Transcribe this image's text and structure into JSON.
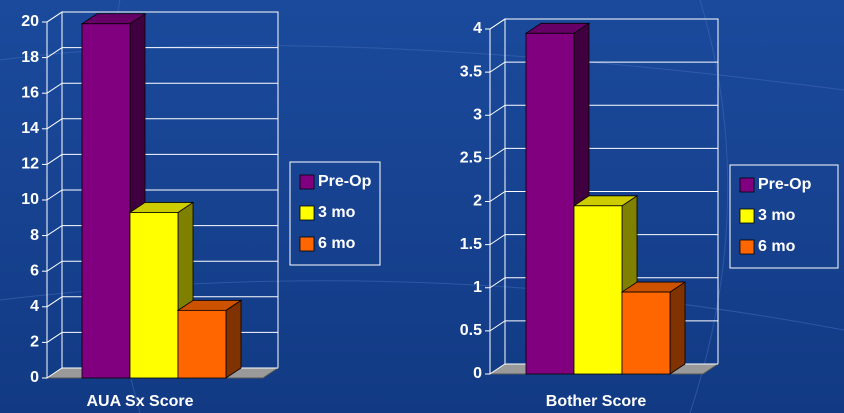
{
  "chart_data": [
    {
      "type": "bar",
      "xlabel": "AUA Sx Score",
      "series": [
        {
          "name": "Pre-Op",
          "color": "#800080",
          "values": [
            19.9
          ]
        },
        {
          "name": "3 mo",
          "color": "#ffff00",
          "values": [
            9.3
          ]
        },
        {
          "name": "6 mo",
          "color": "#ff6600",
          "values": [
            3.8
          ]
        }
      ],
      "ylim": [
        0,
        20
      ],
      "yticks": [
        0,
        2,
        4,
        6,
        8,
        10,
        12,
        14,
        16,
        18,
        20
      ],
      "grid": true
    },
    {
      "type": "bar",
      "xlabel": "Bother Score",
      "series": [
        {
          "name": "Pre-Op",
          "color": "#800080",
          "values": [
            3.95
          ]
        },
        {
          "name": "3 mo",
          "color": "#ffff00",
          "values": [
            1.95
          ]
        },
        {
          "name": "6 mo",
          "color": "#ff6600",
          "values": [
            0.95
          ]
        }
      ],
      "ylim": [
        0,
        4
      ],
      "yticks": [
        0,
        0.5,
        1,
        1.5,
        2,
        2.5,
        3,
        3.5,
        4
      ],
      "grid": true
    }
  ]
}
